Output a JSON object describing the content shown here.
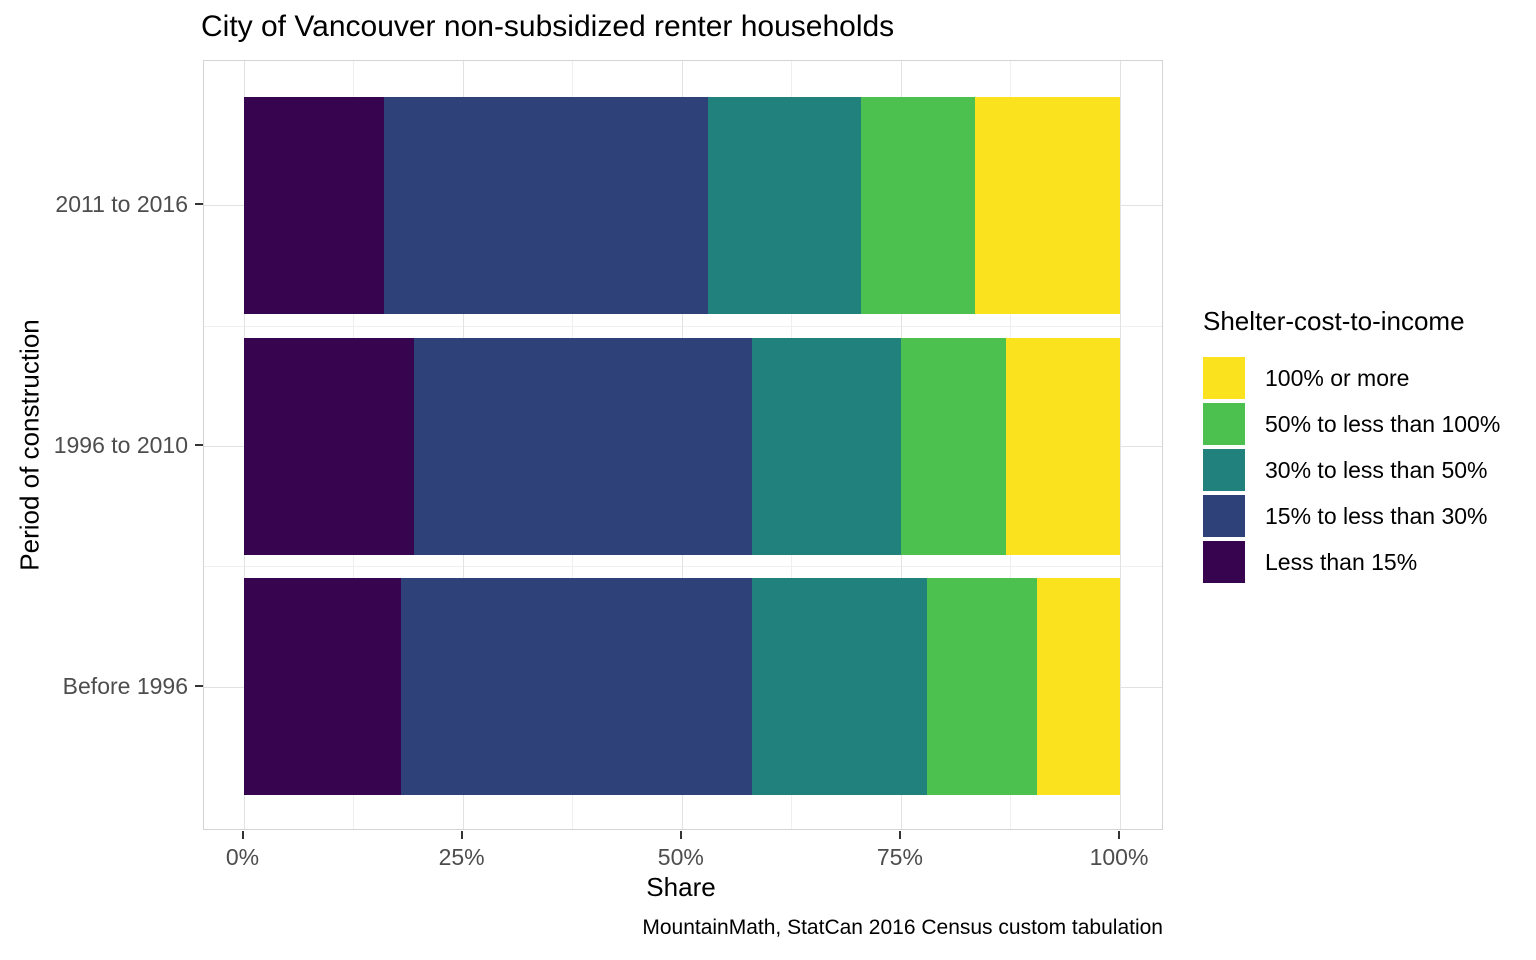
{
  "chart_data": {
    "type": "bar",
    "orientation": "horizontal",
    "stacked": true,
    "title": "City of Vancouver non-subsidized renter households",
    "xlabel": "Share",
    "ylabel": "Period of construction",
    "caption": "MountainMath, StatCan 2016 Census custom tabulation",
    "categories": [
      "2011 to 2016",
      "1996 to 2010",
      "Before 1996"
    ],
    "x_ticks": [
      "0%",
      "25%",
      "50%",
      "75%",
      "100%"
    ],
    "x_tick_values": [
      0,
      25,
      50,
      75,
      100
    ],
    "xlim": [
      0,
      100
    ],
    "grid": true,
    "legend": {
      "title": "Shelter-cost-to-income",
      "position": "right",
      "entries": [
        {
          "label": "100% or more",
          "color": "#fbe21e"
        },
        {
          "label": "50% to less than 100%",
          "color": "#4dc14f"
        },
        {
          "label": "30% to less than 50%",
          "color": "#20817d"
        },
        {
          "label": "15% to less than 30%",
          "color": "#2e4178"
        },
        {
          "label": "Less than 15%",
          "color": "#37054f"
        }
      ]
    },
    "series": [
      {
        "name": "Less than 15%",
        "color": "#37054f",
        "values": [
          16,
          19.5,
          18
        ]
      },
      {
        "name": "15% to less than 30%",
        "color": "#2e4178",
        "values": [
          37,
          38.5,
          40
        ]
      },
      {
        "name": "30% to less than 50%",
        "color": "#20817d",
        "values": [
          17.5,
          17,
          20
        ]
      },
      {
        "name": "50% to less than 100%",
        "color": "#4dc14f",
        "values": [
          13,
          12,
          12.5
        ]
      },
      {
        "name": "100% or more",
        "color": "#fbe21e",
        "values": [
          16.5,
          13,
          9.5
        ]
      }
    ],
    "style": {
      "grid_major_color": "#e2e2e2",
      "grid_minor_color": "#efefef",
      "panel_border_color": "#d4d4d4",
      "tick_label_color": "#4d4d4d",
      "text_color": "#000000"
    }
  }
}
